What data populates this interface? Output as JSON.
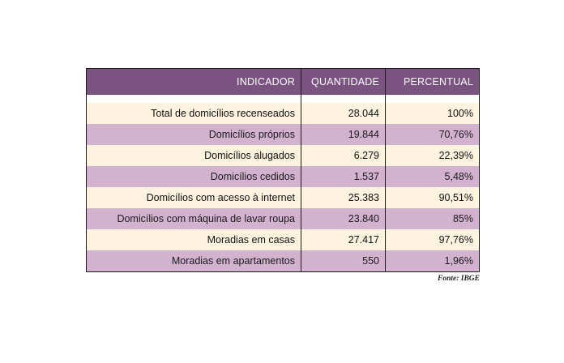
{
  "table": {
    "headers": {
      "indicator": "INDICADOR",
      "quantity": "QUANTIDADE",
      "percent": "PERCENTUAL"
    },
    "rows": [
      {
        "indicator": "Total de domicílios recenseados",
        "quantity": "28.044",
        "percent": "100%"
      },
      {
        "indicator": "Domicílios próprios",
        "quantity": "19.844",
        "percent": "70,76%"
      },
      {
        "indicator": "Domicílios alugados",
        "quantity": "6.279",
        "percent": "22,39%"
      },
      {
        "indicator": "Domicílios cedidos",
        "quantity": "1.537",
        "percent": "5,48%"
      },
      {
        "indicator": "Domicílios com acesso à internet",
        "quantity": "25.383",
        "percent": "90,51%"
      },
      {
        "indicator": "Domicílios com máquina de lavar roupa",
        "quantity": "23.840",
        "percent": "85%"
      },
      {
        "indicator": "Moradias em casas",
        "quantity": "27.417",
        "percent": "97,76%"
      },
      {
        "indicator": "Moradias em apartamentos",
        "quantity": "550",
        "percent": "1,96%"
      }
    ]
  },
  "source": "Fonte: IBGE",
  "colors": {
    "header_bg": "#7a5380",
    "row_light": "#fdf3de",
    "row_dark": "#d3b2cf"
  }
}
